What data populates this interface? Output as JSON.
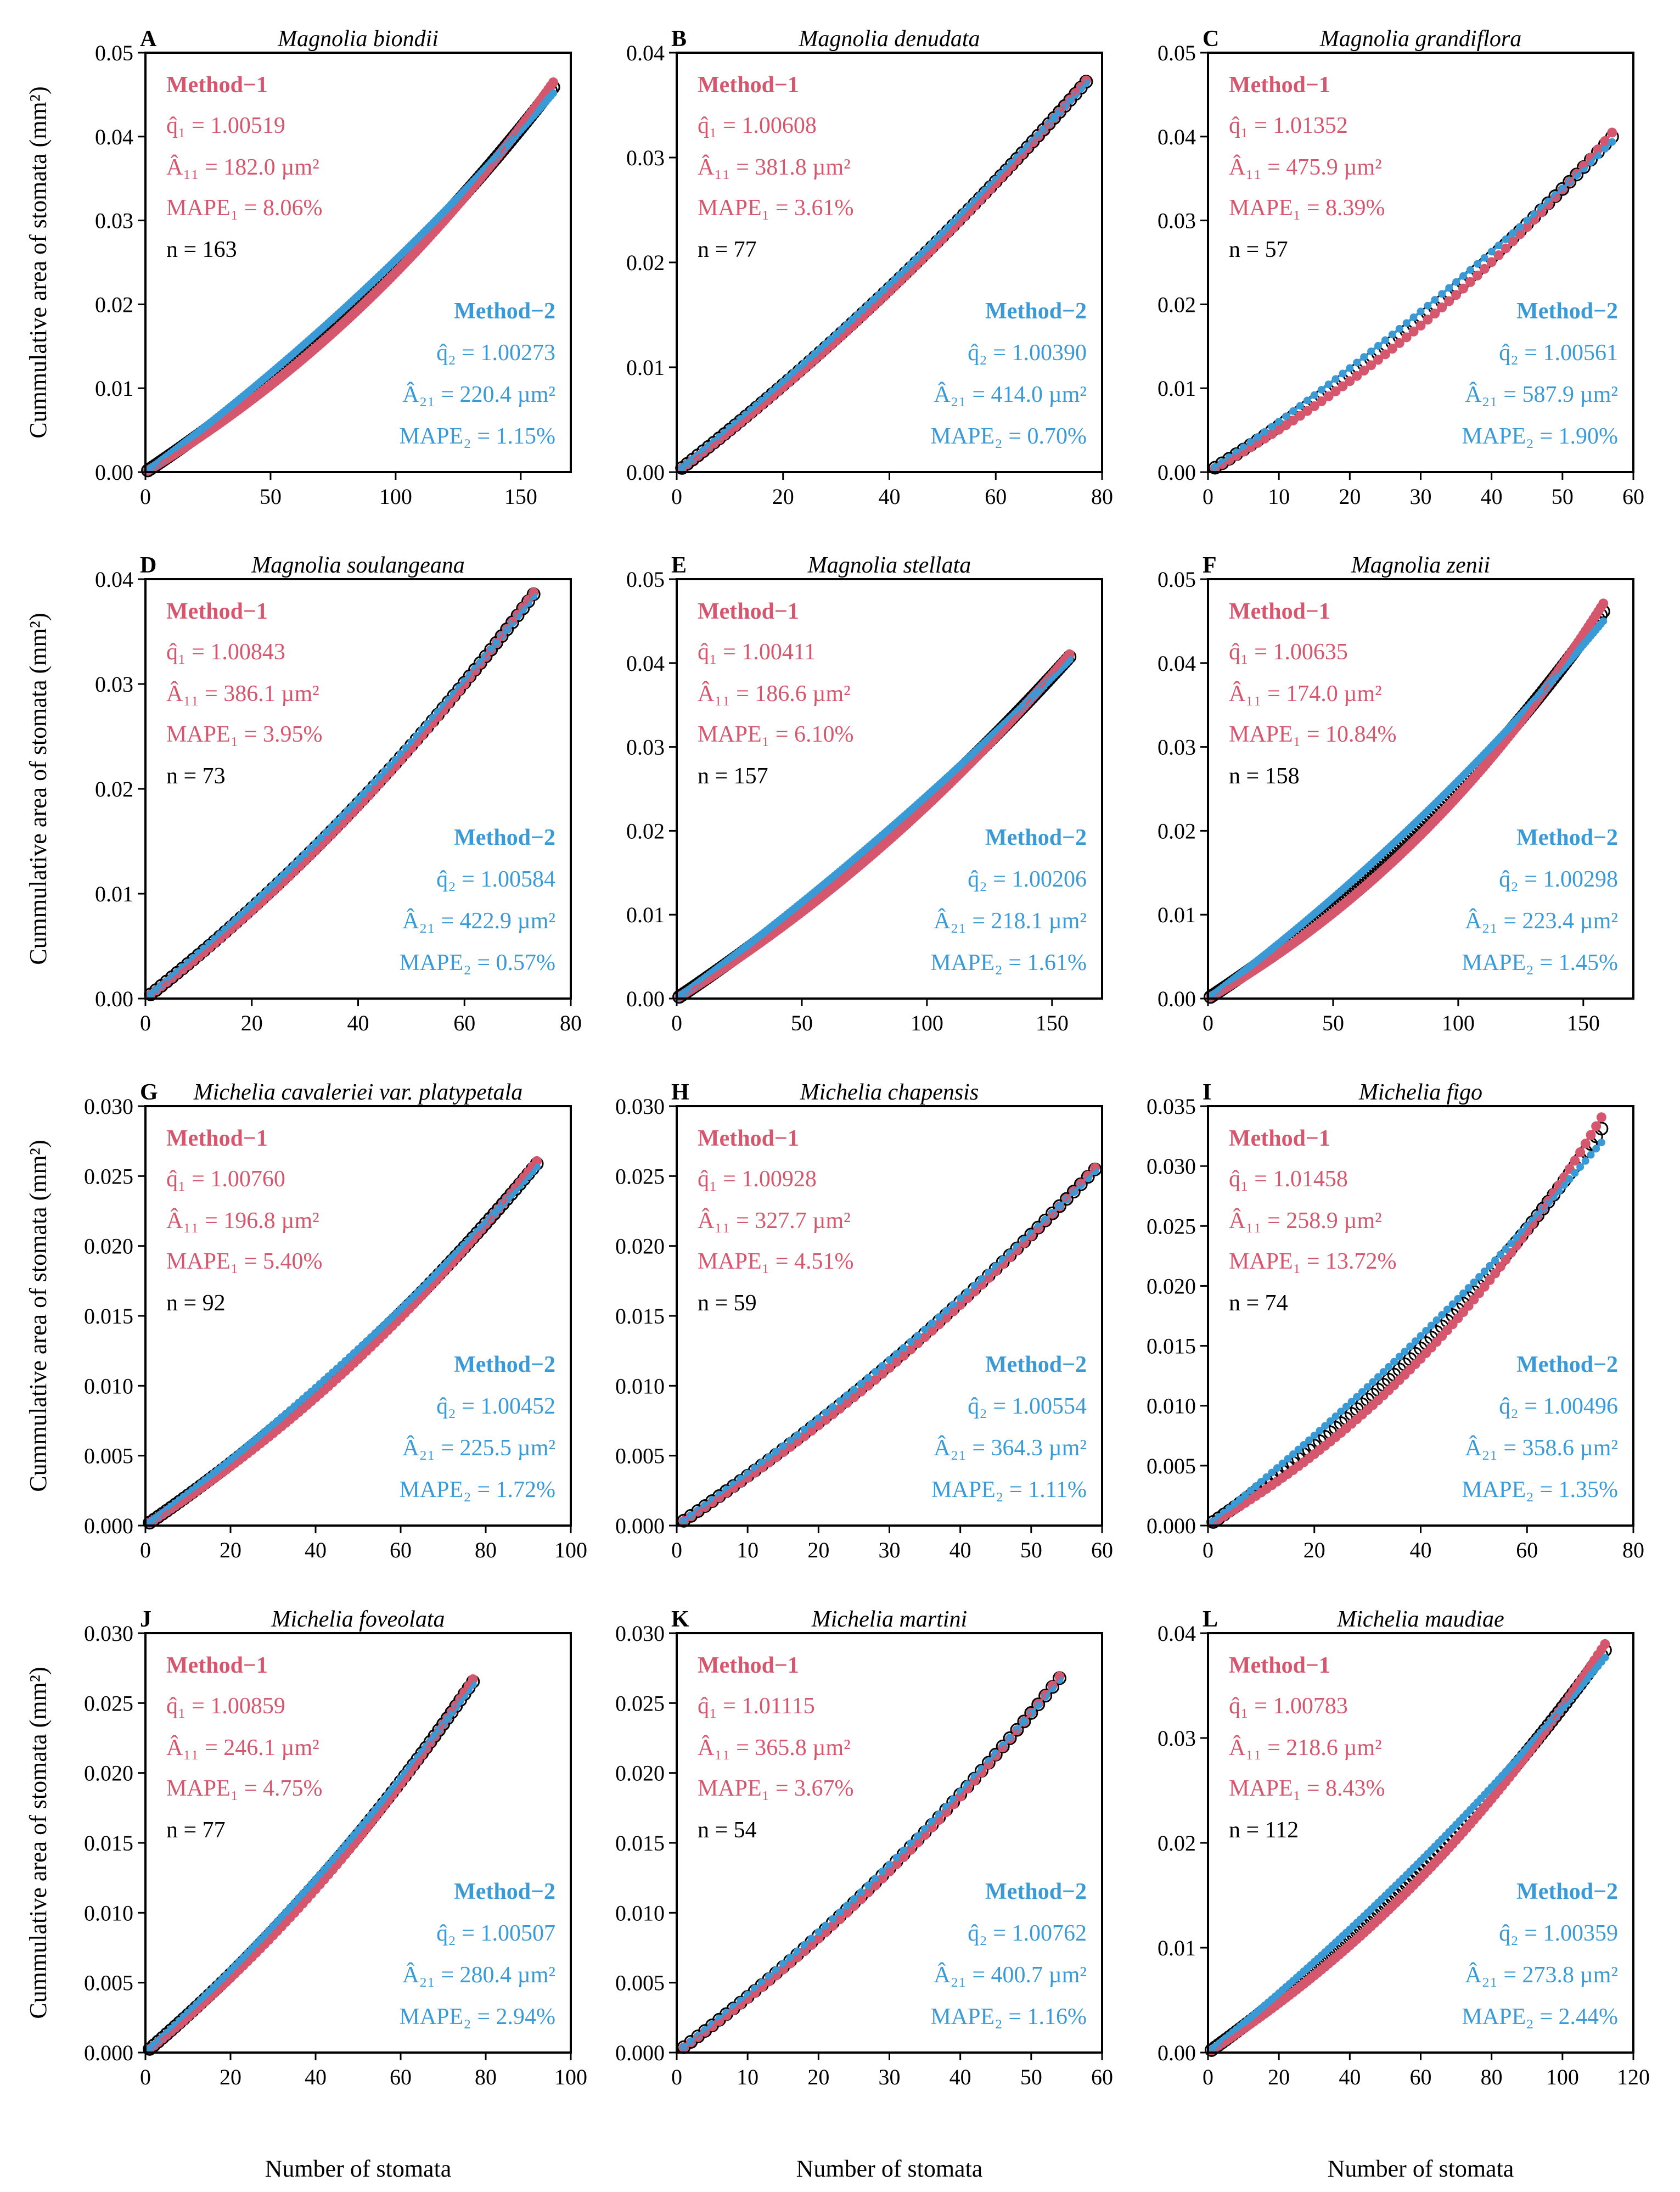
{
  "figure": {
    "y_axis_label": "Cummulative area of stomata (mm²)",
    "x_axis_label": "Number of stomata",
    "method1_heading": "Method−1",
    "method2_heading": "Method−2",
    "colors": {
      "method1": "#d5576e",
      "method2": "#3a9ad6",
      "observed": "#000000",
      "frame": "#000000"
    }
  },
  "chart_data": [
    {
      "type": "scatter",
      "letter": "A",
      "title": "Magnolia biondii",
      "n": 163,
      "xlim": [
        0,
        170
      ],
      "ylim": [
        0,
        0.05
      ],
      "xticks": [
        "0",
        "50",
        "100",
        "150"
      ],
      "xtick_values": [
        0,
        50,
        100,
        150
      ],
      "yticks": [
        "0.00",
        "0.01",
        "0.02",
        "0.03",
        "0.04",
        "0.05"
      ],
      "ytick_values": [
        0,
        0.01,
        0.02,
        0.03,
        0.04,
        0.05
      ],
      "method1": {
        "q_label": "q̂₁ = 1.00519",
        "A_label": "Â₁₁ = 182.0 µm²",
        "mape_label": "MAPE₁ = 8.06%",
        "q": 1.00519,
        "A_um2": 182.0,
        "mape": 8.06
      },
      "method2": {
        "q_label": "q̂₂ = 1.00273",
        "A_label": "Â₂₁ = 220.4 µm²",
        "mape_label": "MAPE₂ = 1.15%",
        "q": 1.00273,
        "A_um2": 220.4,
        "mape": 1.15
      },
      "n_label": "n = 163"
    },
    {
      "type": "scatter",
      "letter": "B",
      "title": "Magnolia denudata",
      "n": 77,
      "xlim": [
        0,
        80
      ],
      "ylim": [
        0,
        0.04
      ],
      "xticks": [
        "0",
        "20",
        "40",
        "60",
        "80"
      ],
      "xtick_values": [
        0,
        20,
        40,
        60,
        80
      ],
      "yticks": [
        "0.00",
        "0.01",
        "0.02",
        "0.03",
        "0.04"
      ],
      "ytick_values": [
        0,
        0.01,
        0.02,
        0.03,
        0.04
      ],
      "method1": {
        "q_label": "q̂₁ = 1.00608",
        "A_label": "Â₁₁ = 381.8 µm²",
        "mape_label": "MAPE₁ = 3.61%",
        "q": 1.00608,
        "A_um2": 381.8,
        "mape": 3.61
      },
      "method2": {
        "q_label": "q̂₂ = 1.00390",
        "A_label": "Â₂₁ = 414.0 µm²",
        "mape_label": "MAPE₂ = 0.70%",
        "q": 1.0039,
        "A_um2": 414.0,
        "mape": 0.7
      },
      "n_label": "n = 77"
    },
    {
      "type": "scatter",
      "letter": "C",
      "title": "Magnolia grandiflora",
      "n": 57,
      "xlim": [
        0,
        60
      ],
      "ylim": [
        0,
        0.05
      ],
      "xticks": [
        "0",
        "10",
        "20",
        "30",
        "40",
        "50",
        "60"
      ],
      "xtick_values": [
        0,
        10,
        20,
        30,
        40,
        50,
        60
      ],
      "yticks": [
        "0.00",
        "0.01",
        "0.02",
        "0.03",
        "0.04",
        "0.05"
      ],
      "ytick_values": [
        0,
        0.01,
        0.02,
        0.03,
        0.04,
        0.05
      ],
      "method1": {
        "q_label": "q̂₁ = 1.01352",
        "A_label": "Â₁₁ = 475.9 µm²",
        "mape_label": "MAPE₁ = 8.39%",
        "q": 1.01352,
        "A_um2": 475.9,
        "mape": 8.39
      },
      "method2": {
        "q_label": "q̂₂ = 1.00561",
        "A_label": "Â₂₁ = 587.9 µm²",
        "mape_label": "MAPE₂ = 1.90%",
        "q": 1.00561,
        "A_um2": 587.9,
        "mape": 1.9
      },
      "n_label": "n = 57"
    },
    {
      "type": "scatter",
      "letter": "D",
      "title": "Magnolia soulangeana",
      "n": 73,
      "xlim": [
        0,
        80
      ],
      "ylim": [
        0,
        0.04
      ],
      "xticks": [
        "0",
        "20",
        "40",
        "60",
        "80"
      ],
      "xtick_values": [
        0,
        20,
        40,
        60,
        80
      ],
      "yticks": [
        "0.00",
        "0.01",
        "0.02",
        "0.03",
        "0.04"
      ],
      "ytick_values": [
        0,
        0.01,
        0.02,
        0.03,
        0.04
      ],
      "method1": {
        "q_label": "q̂₁ = 1.00843",
        "A_label": "Â₁₁ = 386.1 µm²",
        "mape_label": "MAPE₁ = 3.95%",
        "q": 1.00843,
        "A_um2": 386.1,
        "mape": 3.95
      },
      "method2": {
        "q_label": "q̂₂ = 1.00584",
        "A_label": "Â₂₁ = 422.9 µm²",
        "mape_label": "MAPE₂ = 0.57%",
        "q": 1.00584,
        "A_um2": 422.9,
        "mape": 0.57
      },
      "n_label": "n = 73"
    },
    {
      "type": "scatter",
      "letter": "E",
      "title": "Magnolia stellata",
      "n": 157,
      "xlim": [
        0,
        170
      ],
      "ylim": [
        0,
        0.05
      ],
      "xticks": [
        "0",
        "50",
        "100",
        "150"
      ],
      "xtick_values": [
        0,
        50,
        100,
        150
      ],
      "yticks": [
        "0.00",
        "0.01",
        "0.02",
        "0.03",
        "0.04",
        "0.05"
      ],
      "ytick_values": [
        0,
        0.01,
        0.02,
        0.03,
        0.04,
        0.05
      ],
      "method1": {
        "q_label": "q̂₁ = 1.00411",
        "A_label": "Â₁₁ = 186.6 µm²",
        "mape_label": "MAPE₁ = 6.10%",
        "q": 1.00411,
        "A_um2": 186.6,
        "mape": 6.1
      },
      "method2": {
        "q_label": "q̂₂ = 1.00206",
        "A_label": "Â₂₁ = 218.1 µm²",
        "mape_label": "MAPE₂ = 1.61%",
        "q": 1.00206,
        "A_um2": 218.1,
        "mape": 1.61
      },
      "n_label": "n = 157"
    },
    {
      "type": "scatter",
      "letter": "F",
      "title": "Magnolia zenii",
      "n": 158,
      "xlim": [
        0,
        170
      ],
      "ylim": [
        0,
        0.05
      ],
      "xticks": [
        "0",
        "50",
        "100",
        "150"
      ],
      "xtick_values": [
        0,
        50,
        100,
        150
      ],
      "yticks": [
        "0.00",
        "0.01",
        "0.02",
        "0.03",
        "0.04",
        "0.05"
      ],
      "ytick_values": [
        0,
        0.01,
        0.02,
        0.03,
        0.04,
        0.05
      ],
      "method1": {
        "q_label": "q̂₁ = 1.00635",
        "A_label": "Â₁₁ = 174.0 µm²",
        "mape_label": "MAPE₁ = 10.84%",
        "q": 1.00635,
        "A_um2": 174.0,
        "mape": 10.84
      },
      "method2": {
        "q_label": "q̂₂ = 1.00298",
        "A_label": "Â₂₁ = 223.4 µm²",
        "mape_label": "MAPE₂ = 1.45%",
        "q": 1.00298,
        "A_um2": 223.4,
        "mape": 1.45
      },
      "n_label": "n = 158"
    },
    {
      "type": "scatter",
      "letter": "G",
      "title": "Michelia cavaleriei var. platypetala",
      "n": 92,
      "xlim": [
        0,
        100
      ],
      "ylim": [
        0,
        0.03
      ],
      "xticks": [
        "0",
        "20",
        "40",
        "60",
        "80",
        "100"
      ],
      "xtick_values": [
        0,
        20,
        40,
        60,
        80,
        100
      ],
      "yticks": [
        "0.000",
        "0.005",
        "0.010",
        "0.015",
        "0.020",
        "0.025",
        "0.030"
      ],
      "ytick_values": [
        0,
        0.005,
        0.01,
        0.015,
        0.02,
        0.025,
        0.03
      ],
      "method1": {
        "q_label": "q̂₁ = 1.00760",
        "A_label": "Â₁₁ = 196.8 µm²",
        "mape_label": "MAPE₁ = 5.40%",
        "q": 1.0076,
        "A_um2": 196.8,
        "mape": 5.4
      },
      "method2": {
        "q_label": "q̂₂ = 1.00452",
        "A_label": "Â₂₁ = 225.5 µm²",
        "mape_label": "MAPE₂ = 1.72%",
        "q": 1.00452,
        "A_um2": 225.5,
        "mape": 1.72
      },
      "n_label": "n = 92"
    },
    {
      "type": "scatter",
      "letter": "H",
      "title": "Michelia chapensis",
      "n": 59,
      "xlim": [
        0,
        60
      ],
      "ylim": [
        0,
        0.03
      ],
      "xticks": [
        "0",
        "10",
        "20",
        "30",
        "40",
        "50",
        "60"
      ],
      "xtick_values": [
        0,
        10,
        20,
        30,
        40,
        50,
        60
      ],
      "yticks": [
        "0.000",
        "0.005",
        "0.010",
        "0.015",
        "0.020",
        "0.025",
        "0.030"
      ],
      "ytick_values": [
        0,
        0.005,
        0.01,
        0.015,
        0.02,
        0.025,
        0.03
      ],
      "method1": {
        "q_label": "q̂₁ = 1.00928",
        "A_label": "Â₁₁ = 327.7 µm²",
        "mape_label": "MAPE₁ = 4.51%",
        "q": 1.00928,
        "A_um2": 327.7,
        "mape": 4.51
      },
      "method2": {
        "q_label": "q̂₂ = 1.00554",
        "A_label": "Â₂₁ = 364.3 µm²",
        "mape_label": "MAPE₂ = 1.11%",
        "q": 1.00554,
        "A_um2": 364.3,
        "mape": 1.11
      },
      "n_label": "n = 59"
    },
    {
      "type": "scatter",
      "letter": "I",
      "title": "Michelia figo",
      "n": 74,
      "xlim": [
        0,
        80
      ],
      "ylim": [
        0,
        0.035
      ],
      "xticks": [
        "0",
        "20",
        "40",
        "60",
        "80"
      ],
      "xtick_values": [
        0,
        20,
        40,
        60,
        80
      ],
      "yticks": [
        "0.000",
        "0.005",
        "0.010",
        "0.015",
        "0.020",
        "0.025",
        "0.030",
        "0.035"
      ],
      "ytick_values": [
        0,
        0.005,
        0.01,
        0.015,
        0.02,
        0.025,
        0.03,
        0.035
      ],
      "method1": {
        "q_label": "q̂₁ = 1.01458",
        "A_label": "Â₁₁ = 258.9 µm²",
        "mape_label": "MAPE₁ = 13.72%",
        "q": 1.01458,
        "A_um2": 258.9,
        "mape": 13.72
      },
      "method2": {
        "q_label": "q̂₂ = 1.00496",
        "A_label": "Â₂₁ = 358.6 µm²",
        "mape_label": "MAPE₂ = 1.35%",
        "q": 1.00496,
        "A_um2": 358.6,
        "mape": 1.35
      },
      "n_label": "n = 74"
    },
    {
      "type": "scatter",
      "letter": "J",
      "title": "Michelia foveolata",
      "n": 77,
      "xlim": [
        0,
        100
      ],
      "ylim": [
        0,
        0.03
      ],
      "xticks": [
        "0",
        "20",
        "40",
        "60",
        "80",
        "100"
      ],
      "xtick_values": [
        0,
        20,
        40,
        60,
        80,
        100
      ],
      "yticks": [
        "0.000",
        "0.005",
        "0.010",
        "0.015",
        "0.020",
        "0.025",
        "0.030"
      ],
      "ytick_values": [
        0,
        0.005,
        0.01,
        0.015,
        0.02,
        0.025,
        0.03
      ],
      "method1": {
        "q_label": "q̂₁ = 1.00859",
        "A_label": "Â₁₁ = 246.1 µm²",
        "mape_label": "MAPE₁ = 4.75%",
        "q": 1.00859,
        "A_um2": 246.1,
        "mape": 4.75
      },
      "method2": {
        "q_label": "q̂₂ = 1.00507",
        "A_label": "Â₂₁ = 280.4 µm²",
        "mape_label": "MAPE₂ = 2.94%",
        "q": 1.00507,
        "A_um2": 280.4,
        "mape": 2.94
      },
      "n_label": "n = 77"
    },
    {
      "type": "scatter",
      "letter": "K",
      "title": "Michelia martini",
      "n": 54,
      "xlim": [
        0,
        60
      ],
      "ylim": [
        0,
        0.03
      ],
      "xticks": [
        "0",
        "10",
        "20",
        "30",
        "40",
        "50",
        "60"
      ],
      "xtick_values": [
        0,
        10,
        20,
        30,
        40,
        50,
        60
      ],
      "yticks": [
        "0.000",
        "0.005",
        "0.010",
        "0.015",
        "0.020",
        "0.025",
        "0.030"
      ],
      "ytick_values": [
        0,
        0.005,
        0.01,
        0.015,
        0.02,
        0.025,
        0.03
      ],
      "method1": {
        "q_label": "q̂₁ = 1.01115",
        "A_label": "Â₁₁ = 365.8 µm²",
        "mape_label": "MAPE₁ = 3.67%",
        "q": 1.01115,
        "A_um2": 365.8,
        "mape": 3.67
      },
      "method2": {
        "q_label": "q̂₂ = 1.00762",
        "A_label": "Â₂₁ = 400.7 µm²",
        "mape_label": "MAPE₂ = 1.16%",
        "q": 1.00762,
        "A_um2": 400.7,
        "mape": 1.16
      },
      "n_label": "n = 54"
    },
    {
      "type": "scatter",
      "letter": "L",
      "title": "Michelia maudiae",
      "n": 112,
      "xlim": [
        0,
        120
      ],
      "ylim": [
        0,
        0.04
      ],
      "xticks": [
        "0",
        "20",
        "40",
        "60",
        "80",
        "100",
        "120"
      ],
      "xtick_values": [
        0,
        20,
        40,
        60,
        80,
        100,
        120
      ],
      "yticks": [
        "0.00",
        "0.01",
        "0.02",
        "0.03",
        "0.04"
      ],
      "ytick_values": [
        0,
        0.01,
        0.02,
        0.03,
        0.04
      ],
      "method1": {
        "q_label": "q̂₁ = 1.00783",
        "A_label": "Â₁₁ = 218.6 µm²",
        "mape_label": "MAPE₁ = 8.43%",
        "q": 1.00783,
        "A_um2": 218.6,
        "mape": 8.43
      },
      "method2": {
        "q_label": "q̂₂ = 1.00359",
        "A_label": "Â₂₁ = 273.8 µm²",
        "mape_label": "MAPE₂ = 2.44%",
        "q": 1.00359,
        "A_um2": 273.8,
        "mape": 2.44
      },
      "n_label": "n = 112"
    }
  ]
}
